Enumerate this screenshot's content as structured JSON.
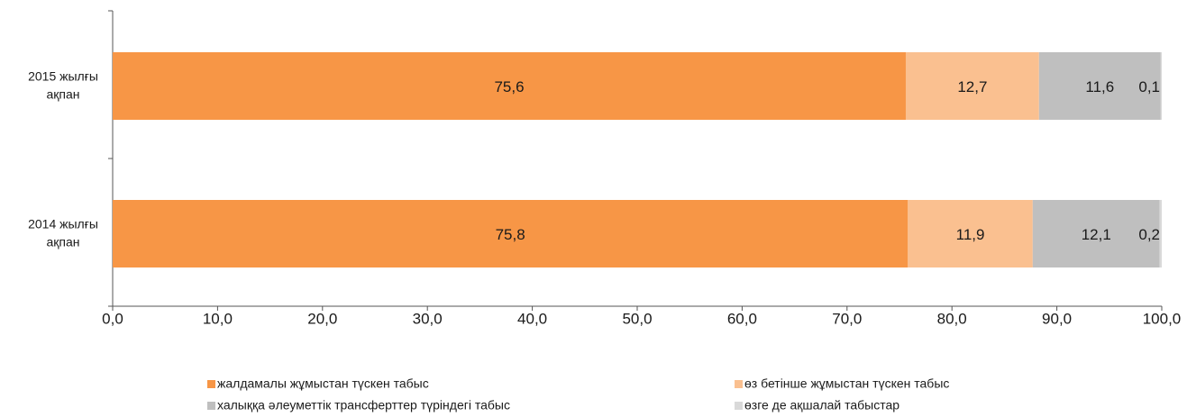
{
  "chart_data": {
    "type": "stacked-barh",
    "categories": [
      "2015 жылғы ақпан",
      "2014 жылғы ақпан"
    ],
    "series": [
      {
        "name": "жалдамалы жұмыстан түскен табыс",
        "color": "#f79646",
        "label_color": "#ffffff",
        "values": [
          75.6,
          75.8
        ],
        "value_labels": [
          "75,6",
          "75,8"
        ]
      },
      {
        "name": "өз бетінше жұмыстан түскен табыс",
        "color": "#fac090",
        "label_color": "#1a1a1a",
        "values": [
          12.7,
          11.9
        ],
        "value_labels": [
          "12,7",
          "11,9"
        ]
      },
      {
        "name": "халыққа әлеуметтік трансферттер түріндегі табыс",
        "color": "#bfbfbf",
        "label_color": "#1a1a1a",
        "values": [
          11.6,
          12.1
        ],
        "value_labels": [
          "11,6",
          "12,1"
        ]
      },
      {
        "name": "өзге де ақшалай табыстар",
        "color": "#d9d9d9",
        "label_color": "#1a1a1a",
        "values": [
          0.1,
          0.2
        ],
        "value_labels": [
          "0,1",
          "0,2"
        ]
      }
    ],
    "xlim": [
      0,
      100
    ],
    "xticks": [
      {
        "value": 0,
        "label": "0,0"
      },
      {
        "value": 10,
        "label": "10,0"
      },
      {
        "value": 20,
        "label": "20,0"
      },
      {
        "value": 30,
        "label": "30,0"
      },
      {
        "value": 40,
        "label": "40,0"
      },
      {
        "value": 50,
        "label": "50,0"
      },
      {
        "value": 60,
        "label": "60,0"
      },
      {
        "value": 70,
        "label": "70,0"
      },
      {
        "value": 80,
        "label": "80,0"
      },
      {
        "value": 90,
        "label": "90,0"
      },
      {
        "value": 100,
        "label": "100,0"
      }
    ],
    "legend": "bottom"
  }
}
